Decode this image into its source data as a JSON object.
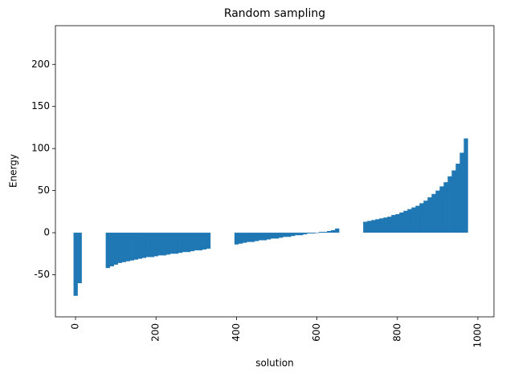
{
  "chart_data": {
    "type": "bar",
    "title": "Random sampling",
    "x_label": "solution",
    "y_label": "Energy",
    "x": [
      0,
      10,
      80,
      90,
      100,
      110,
      120,
      130,
      140,
      150,
      160,
      170,
      180,
      190,
      200,
      210,
      220,
      230,
      240,
      250,
      260,
      270,
      280,
      290,
      300,
      310,
      320,
      330,
      400,
      410,
      420,
      430,
      440,
      450,
      460,
      470,
      480,
      490,
      500,
      510,
      520,
      530,
      540,
      550,
      560,
      570,
      580,
      590,
      600,
      610,
      620,
      630,
      640,
      650,
      720,
      730,
      740,
      750,
      760,
      770,
      780,
      790,
      800,
      810,
      820,
      830,
      840,
      850,
      860,
      870,
      880,
      890,
      900,
      910,
      920,
      930,
      940,
      950,
      960,
      970
    ],
    "values": [
      -75,
      -60,
      -42,
      -40,
      -38,
      -36,
      -35,
      -34,
      -33,
      -32,
      -31,
      -30,
      -29,
      -29,
      -28,
      -27,
      -27,
      -26,
      -25,
      -25,
      -24,
      -23,
      -23,
      -22,
      -21,
      -21,
      -20,
      -19,
      -14,
      -13,
      -12,
      -11,
      -11,
      -10,
      -9,
      -9,
      -8,
      -7,
      -7,
      -6,
      -5,
      -5,
      -4,
      -3,
      -3,
      -2,
      -1,
      -1,
      0,
      1,
      1,
      2,
      3,
      5,
      13,
      14,
      15,
      16,
      17,
      18,
      19,
      21,
      22,
      24,
      26,
      28,
      30,
      32,
      35,
      38,
      42,
      46,
      50,
      55,
      60,
      67,
      74,
      82,
      95,
      112
    ],
    "color": "#1f77b4",
    "xlim": [
      -50,
      1040
    ],
    "ylim": [
      -100,
      246
    ],
    "xticks": [
      0,
      200,
      400,
      600,
      800,
      1000
    ],
    "yticks": [
      -50,
      0,
      50,
      100,
      150,
      200
    ],
    "grid": false
  }
}
